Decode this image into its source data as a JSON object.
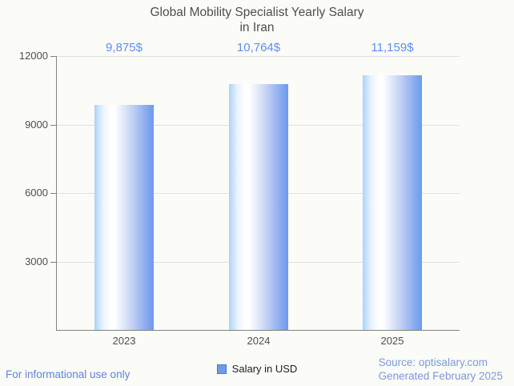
{
  "title": {
    "line1": "Global Mobility Specialist Yearly Salary",
    "line2": "in Iran"
  },
  "chart_data": {
    "type": "bar",
    "categories": [
      "2023",
      "2024",
      "2025"
    ],
    "values": [
      9875,
      10764,
      11159
    ],
    "value_labels": [
      "9,875$",
      "10,764$",
      "11,159$"
    ],
    "title": "Global Mobility Specialist Yearly Salary in Iran",
    "xlabel": "",
    "ylabel": "",
    "ylim": [
      0,
      12000
    ],
    "yticks": [
      3000,
      6000,
      9000,
      12000
    ],
    "grid": "horizontal",
    "legend_position": "bottom",
    "legend": [
      {
        "label": "Salary in USD",
        "color": "#6c9ce8"
      }
    ],
    "bar_gradient": [
      "#aad4fa",
      "#ffffff",
      "#6c99ee"
    ]
  },
  "colors": {
    "background": "#fbfbf8",
    "title_text": "#4e4e4e",
    "axis_line": "#828282",
    "gridline": "#e0e0e0",
    "tick_text": "#4f4f4f",
    "value_label_text": "#5b8ff0",
    "footer_left_text": "#5f84d8",
    "footer_right_text": "#7e98dc",
    "legend_swatch": "#6c9ce8"
  },
  "footer": {
    "left": "For informational use only",
    "source": "Source: optisalary.com",
    "generated": "Generated February 2025"
  }
}
